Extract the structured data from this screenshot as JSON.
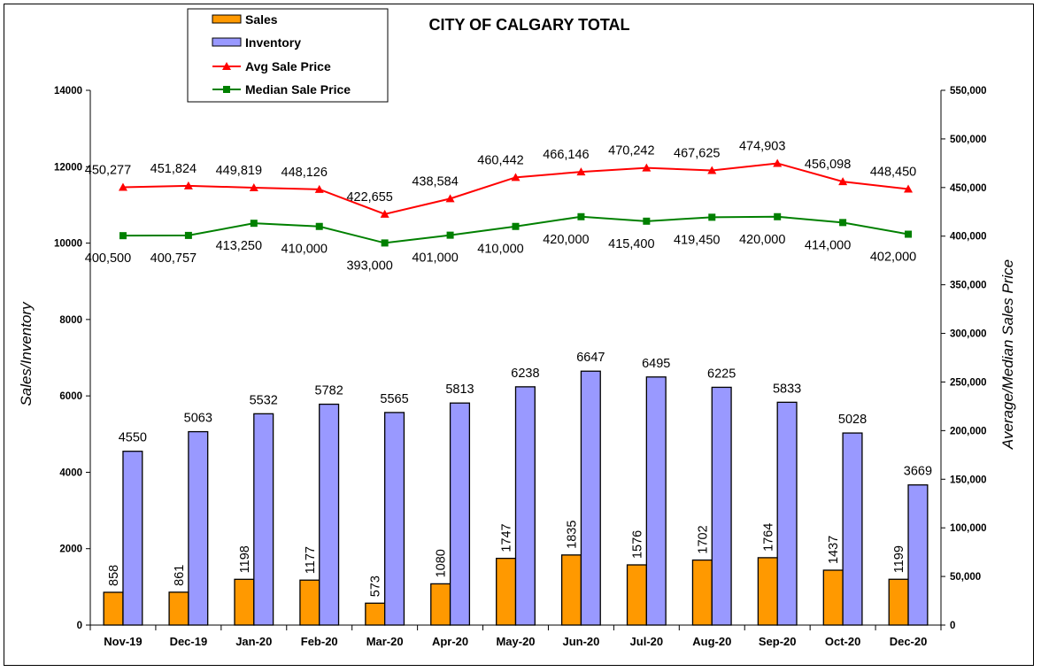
{
  "chart_data": {
    "type": "bar",
    "title": "CITY OF CALGARY TOTAL",
    "ylabel": "Sales/Inventory",
    "y2label": "Average/Median Sales Price",
    "categories": [
      "Nov-19",
      "Dec-19",
      "Jan-20",
      "Feb-20",
      "Mar-20",
      "Apr-20",
      "May-20",
      "Jun-20",
      "Jul-20",
      "Aug-20",
      "Sep-20",
      "Oct-20",
      "Dec-20"
    ],
    "ylim": [
      0,
      14000
    ],
    "y_ticks": [
      "0",
      "2000",
      "4000",
      "6000",
      "8000",
      "10000",
      "12000",
      "14000"
    ],
    "y2lim": [
      0,
      550000
    ],
    "y2_ticks": [
      "0",
      "50,000",
      "100,000",
      "150,000",
      "200,000",
      "250,000",
      "300,000",
      "350,000",
      "400,000",
      "450,000",
      "500,000",
      "550,000"
    ],
    "legend_position": "top-left",
    "grid": false,
    "series": [
      {
        "name": "Sales",
        "type": "bar",
        "axis": "left",
        "color": "#FF9900",
        "values": [
          858,
          861,
          1198,
          1177,
          573,
          1080,
          1747,
          1835,
          1576,
          1702,
          1764,
          1437,
          1199
        ],
        "labels": [
          "858",
          "861",
          "1198",
          "1177",
          "573",
          "1080",
          "1747",
          "1835",
          "1576",
          "1702",
          "1764",
          "1437",
          "1199"
        ]
      },
      {
        "name": "Inventory",
        "type": "bar",
        "axis": "left",
        "color": "#9999FF",
        "values": [
          4550,
          5063,
          5532,
          5782,
          5565,
          5813,
          6238,
          6647,
          6495,
          6225,
          5833,
          5028,
          3669
        ],
        "labels": [
          "4550",
          "5063",
          "5532",
          "5782",
          "5565",
          "5813",
          "6238",
          "6647",
          "6495",
          "6225",
          "5833",
          "5028",
          "3669"
        ]
      },
      {
        "name": "Avg Sale Price",
        "type": "line",
        "axis": "right",
        "color": "#FF0000",
        "marker": "triangle",
        "values": [
          450277,
          451824,
          449819,
          448126,
          422655,
          438584,
          460442,
          466146,
          470242,
          467625,
          474903,
          456098,
          448450
        ],
        "labels": [
          "450,277",
          "451,824",
          "449,819",
          "448,126",
          "422,655",
          "438,584",
          "460,442",
          "466,146",
          "470,242",
          "467,625",
          "474,903",
          "456,098",
          "448,450"
        ]
      },
      {
        "name": "Median Sale Price",
        "type": "line",
        "axis": "right",
        "color": "#008000",
        "marker": "square",
        "values": [
          400500,
          400757,
          413250,
          410000,
          393000,
          401000,
          410000,
          420000,
          415400,
          419450,
          420000,
          414000,
          402000
        ],
        "labels": [
          "400,500",
          "400,757",
          "413,250",
          "410,000",
          "393,000",
          "401,000",
          "410,000",
          "420,000",
          "415,400",
          "419,450",
          "420,000",
          "414,000",
          "402,000"
        ]
      }
    ]
  }
}
